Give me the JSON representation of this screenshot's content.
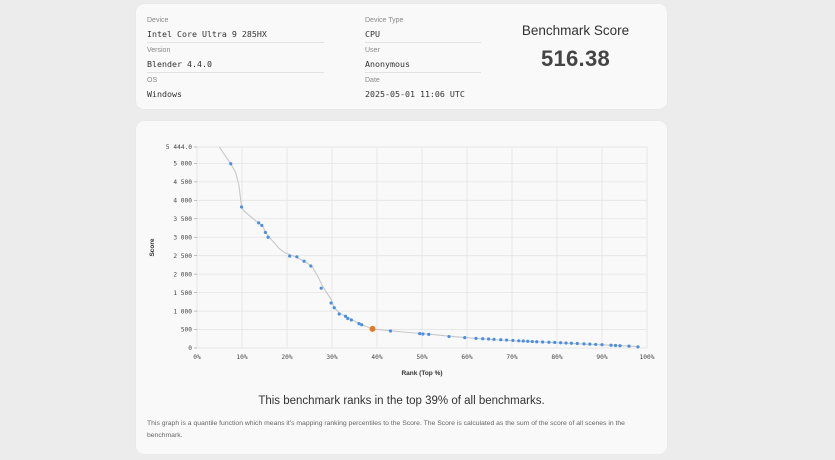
{
  "info": {
    "device_label": "Device",
    "device_value": "Intel Core Ultra 9 285HX",
    "version_label": "Version",
    "version_value": "Blender 4.4.0",
    "os_label": "OS",
    "os_value": "Windows",
    "device_type_label": "Device Type",
    "device_type_value": "CPU",
    "user_label": "User",
    "user_value": "Anonymous",
    "date_label": "Date",
    "date_value": "2025-05-01 11:06 UTC"
  },
  "score": {
    "title": "Benchmark Score",
    "value": "516.38"
  },
  "chart_data": {
    "type": "line",
    "xlabel": "Rank (Top %)",
    "ylabel": "Score",
    "xlim": [
      0,
      100
    ],
    "ylim": [
      0,
      5444.0
    ],
    "x_ticks": [
      "0%",
      "10%",
      "20%",
      "30%",
      "40%",
      "50%",
      "60%",
      "70%",
      "80%",
      "90%",
      "100%"
    ],
    "y_ticks": [
      {
        "v": 0,
        "label": "0"
      },
      {
        "v": 500,
        "label": "500"
      },
      {
        "v": 1000,
        "label": "1 000"
      },
      {
        "v": 1500,
        "label": "1 500"
      },
      {
        "v": 2000,
        "label": "2 000"
      },
      {
        "v": 2500,
        "label": "2 500"
      },
      {
        "v": 3000,
        "label": "3 000"
      },
      {
        "v": 3500,
        "label": "3 500"
      },
      {
        "v": 4000,
        "label": "4 000"
      },
      {
        "v": 4500,
        "label": "4 500"
      },
      {
        "v": 5000,
        "label": "5 000"
      },
      {
        "v": 5444.0,
        "label": "5 444.0"
      }
    ],
    "curve": [
      [
        5,
        5444
      ],
      [
        6.3,
        5200
      ],
      [
        7.5,
        4990
      ],
      [
        8.6,
        4750
      ],
      [
        9.3,
        4400
      ],
      [
        9.9,
        3820
      ],
      [
        10.5,
        3700
      ],
      [
        11.5,
        3600
      ],
      [
        12.5,
        3500
      ],
      [
        13.5,
        3400
      ],
      [
        14.5,
        3320
      ],
      [
        15.3,
        3120
      ],
      [
        16.2,
        2980
      ],
      [
        17.2,
        2850
      ],
      [
        18.2,
        2700
      ],
      [
        19.5,
        2580
      ],
      [
        21.5,
        2490
      ],
      [
        23,
        2400
      ],
      [
        24.6,
        2290
      ],
      [
        25.7,
        2180
      ],
      [
        26.8,
        1950
      ],
      [
        27.8,
        1700
      ],
      [
        28.5,
        1560
      ],
      [
        29.8,
        1320
      ],
      [
        30.4,
        1110
      ],
      [
        31.5,
        960
      ],
      [
        33,
        860
      ],
      [
        35,
        730
      ],
      [
        36,
        660
      ],
      [
        37.5,
        590
      ],
      [
        39,
        515
      ],
      [
        42,
        480
      ],
      [
        47,
        420
      ],
      [
        52,
        370
      ],
      [
        57,
        310
      ],
      [
        62,
        260
      ],
      [
        67,
        220
      ],
      [
        72,
        185
      ],
      [
        77,
        160
      ],
      [
        82,
        130
      ],
      [
        87,
        100
      ],
      [
        92,
        75
      ],
      [
        97,
        50
      ],
      [
        98,
        30
      ]
    ],
    "points": [
      [
        7.5,
        4990
      ],
      [
        9.9,
        3820
      ],
      [
        13.7,
        3390
      ],
      [
        14.4,
        3320
      ],
      [
        15.2,
        3130
      ],
      [
        15.8,
        3000
      ],
      [
        20.6,
        2490
      ],
      [
        22.2,
        2470
      ],
      [
        23.8,
        2350
      ],
      [
        25.3,
        2220
      ],
      [
        27.6,
        1620
      ],
      [
        29.8,
        1220
      ],
      [
        30.5,
        1090
      ],
      [
        31.6,
        920
      ],
      [
        33,
        860
      ],
      [
        33.5,
        800
      ],
      [
        34.3,
        760
      ],
      [
        36,
        660
      ],
      [
        36.6,
        630
      ],
      [
        43,
        460
      ],
      [
        49.5,
        390
      ],
      [
        50.2,
        380
      ],
      [
        51.5,
        370
      ],
      [
        56,
        310
      ],
      [
        59.5,
        280
      ],
      [
        62,
        260
      ],
      [
        63.5,
        250
      ],
      [
        64.8,
        245
      ],
      [
        66,
        235
      ],
      [
        67.5,
        225
      ],
      [
        68.8,
        215
      ],
      [
        70.2,
        205
      ],
      [
        71.5,
        195
      ],
      [
        72.5,
        190
      ],
      [
        73.5,
        182
      ],
      [
        74.5,
        175
      ],
      [
        75.5,
        170
      ],
      [
        76.8,
        162
      ],
      [
        78.2,
        155
      ],
      [
        79.5,
        150
      ],
      [
        80.8,
        143
      ],
      [
        82,
        135
      ],
      [
        83.2,
        128
      ],
      [
        84.5,
        122
      ],
      [
        86,
        112
      ],
      [
        87.3,
        104
      ],
      [
        88.6,
        97
      ],
      [
        90,
        90
      ],
      [
        92,
        75
      ],
      [
        93,
        68
      ],
      [
        94,
        62
      ],
      [
        96,
        50
      ],
      [
        98,
        30
      ]
    ],
    "highlight": {
      "x": 39,
      "y": 516.38
    }
  },
  "footer": {
    "rank_text": "This benchmark ranks in the top 39% of all benchmarks.",
    "description": "This graph is a quantile function which means it's mapping ranking percentiles to the Score. The Score is calculated as the sum of the score of all scenes in the benchmark."
  }
}
